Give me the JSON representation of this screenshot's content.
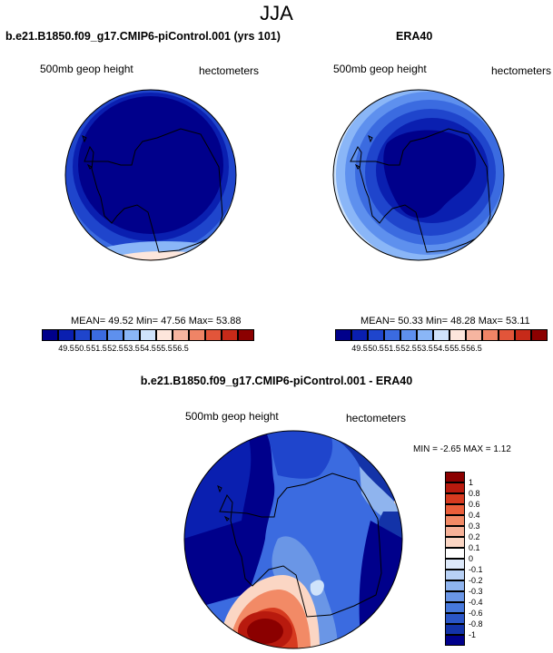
{
  "title": "JJA",
  "panels": [
    {
      "title": "b.e21.B1850.f09_g17.CMIP6-piControl.001 (yrs 101)",
      "left_label": "500mb geop height",
      "right_label": "hectometers",
      "mean_label": "MEAN=",
      "mean": "49.52",
      "min_label": "Min=",
      "min": "47.56",
      "max_label": "Max=",
      "max": "53.88"
    },
    {
      "title": "ERA40",
      "left_label": "500mb geop height",
      "right_label": "hectometers",
      "mean_label": "MEAN=",
      "mean": "50.33",
      "min_label": "Min=",
      "min": "48.28",
      "max_label": "Max=",
      "max": "53.11"
    }
  ],
  "abs_colorbar": {
    "colors": [
      "#00008b",
      "#0a1fb0",
      "#1f45cc",
      "#3b6be0",
      "#5e90ee",
      "#8ab6f7",
      "#cfe3fb",
      "#fde6dc",
      "#f6b5a0",
      "#ef8466",
      "#e2553a",
      "#c72a19",
      "#8b0000"
    ],
    "ticks": [
      "49.5",
      "50.5",
      "51.5",
      "52.5",
      "53.5",
      "54.5",
      "55.5",
      "56.5"
    ]
  },
  "diff_panel": {
    "title": "b.e21.B1850.f09_g17.CMIP6-piControl.001 - ERA40",
    "left_label": "500mb geop height",
    "right_label": "hectometers",
    "min_label": "MIN =",
    "min": "-2.65",
    "max_label": "MAX =",
    "max": "1.12"
  },
  "diff_colorbar": {
    "colors": [
      "#8b0000",
      "#b81a0e",
      "#d63a1f",
      "#ea5e3a",
      "#f28a66",
      "#f6b198",
      "#fbd6c4",
      "#ffffff",
      "#dde9fa",
      "#b8d1f5",
      "#8fb4ee",
      "#6a96e6",
      "#4678db",
      "#2a56c7",
      "#1333a8",
      "#00008b"
    ],
    "ticks": [
      "1",
      "0.8",
      "0.6",
      "0.4",
      "0.3",
      "0.2",
      "0.1",
      "0",
      "-0.1",
      "-0.2",
      "-0.3",
      "-0.4",
      "-0.6",
      "-0.8",
      "-1"
    ]
  }
}
